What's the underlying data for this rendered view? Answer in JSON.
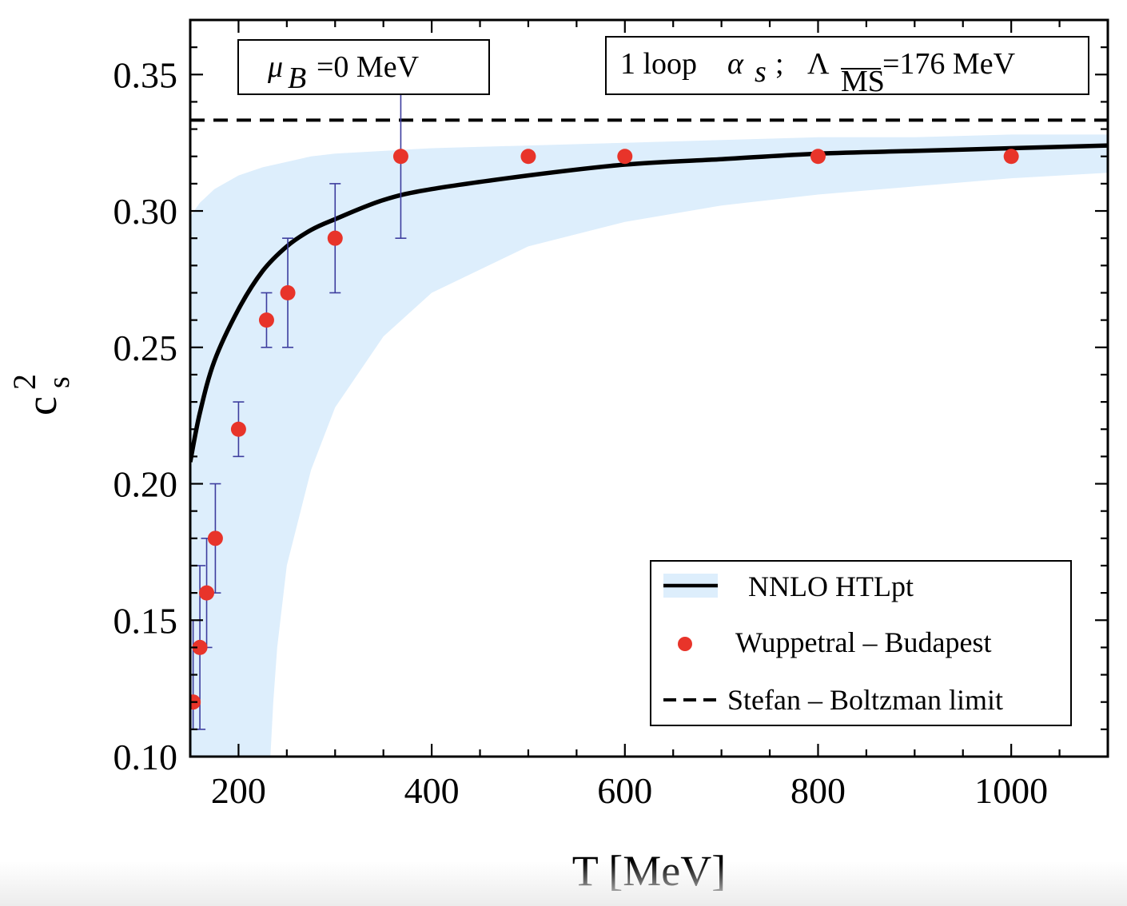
{
  "chart_data": {
    "type": "line",
    "xlabel": "T [MeV]",
    "ylabel": "c",
    "ylabel_sup": "2",
    "ylabel_sub": "s",
    "xlim": [
      150,
      1100
    ],
    "ylim": [
      0.1,
      0.37
    ],
    "x_ticks": [
      200,
      400,
      600,
      800,
      1000
    ],
    "x_tick_labels": [
      "200",
      "400",
      "600",
      "800",
      "1000"
    ],
    "y_ticks": [
      0.1,
      0.15,
      0.2,
      0.25,
      0.3,
      0.35
    ],
    "y_tick_labels": [
      "0.10",
      "0.15",
      "0.20",
      "0.25",
      "0.30",
      "0.35"
    ],
    "annotations": {
      "mu_symbol": "μ",
      "mu_sub": "B",
      "mu_rest": "=0 MeV",
      "coupling_prefix": "1 loop",
      "coupling_alpha": "α",
      "coupling_alpha_sub": "s",
      "coupling_sep": ";",
      "coupling_lambda": "Λ",
      "coupling_lambda_sub": "MS",
      "coupling_rest": "=176 MeV"
    },
    "legend": [
      "NNLO HTLpt",
      "Wuppetral – Budapest",
      "Stefan – Boltzman limit"
    ],
    "legend_position": "bottom-right",
    "series": [
      {
        "name": "NNLO HTLpt",
        "kind": "line-with-band",
        "color": "#000000",
        "band_color": "#ddeefc",
        "x": [
          150,
          160,
          175,
          200,
          225,
          250,
          275,
          300,
          350,
          400,
          500,
          600,
          700,
          800,
          900,
          1000,
          1100
        ],
        "y": [
          0.208,
          0.226,
          0.245,
          0.264,
          0.278,
          0.287,
          0.293,
          0.297,
          0.304,
          0.308,
          0.313,
          0.317,
          0.319,
          0.321,
          0.322,
          0.323,
          0.324
        ],
        "band_upper": [
          0.298,
          0.303,
          0.308,
          0.313,
          0.316,
          0.318,
          0.32,
          0.321,
          0.322,
          0.323,
          0.324,
          0.325,
          0.326,
          0.327,
          0.327,
          0.328,
          0.328
        ],
        "band_lower_x": [
          233,
          236,
          240,
          250,
          275,
          300,
          350,
          400,
          500,
          600,
          700,
          800,
          900,
          1000,
          1100
        ],
        "band_lower": [
          0.1,
          0.12,
          0.14,
          0.17,
          0.205,
          0.228,
          0.254,
          0.27,
          0.287,
          0.296,
          0.302,
          0.306,
          0.309,
          0.312,
          0.314
        ]
      },
      {
        "name": "Wuppetral – Budapest",
        "kind": "scatter-with-errors",
        "color": "#e8342a",
        "error_color": "#3d3d9e",
        "x": [
          153,
          160,
          167,
          176,
          200,
          229,
          251,
          300,
          368,
          500,
          600,
          800,
          1000
        ],
        "y": [
          0.12,
          0.14,
          0.16,
          0.18,
          0.22,
          0.26,
          0.27,
          0.29,
          0.32,
          0.32,
          0.32,
          0.32,
          0.32
        ],
        "y_err_low": [
          0.11,
          0.11,
          0.14,
          0.16,
          0.21,
          0.25,
          0.25,
          0.27,
          0.29,
          0.319,
          0.319,
          0.319,
          0.319
        ],
        "y_err_high": [
          0.15,
          0.17,
          0.18,
          0.2,
          0.23,
          0.27,
          0.29,
          0.31,
          0.35,
          0.321,
          0.321,
          0.321,
          0.321
        ]
      },
      {
        "name": "Stefan – Boltzman limit",
        "kind": "dashed-hline",
        "color": "#000000",
        "y": 0.3333
      }
    ]
  }
}
